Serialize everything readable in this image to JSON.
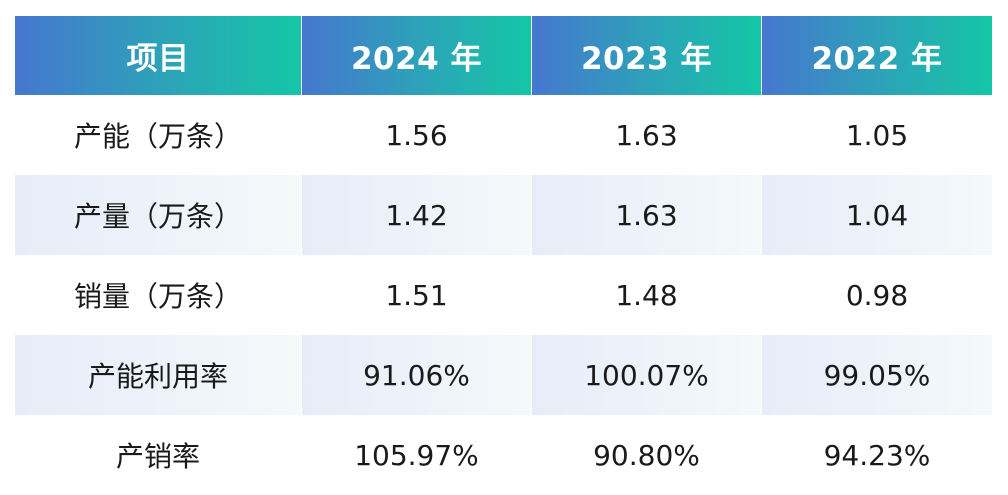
{
  "chart_data": {
    "type": "table",
    "columns": [
      "项目",
      "2024 年",
      "2023 年",
      "2022 年"
    ],
    "rows": [
      {
        "label": "产能（万条）",
        "values": [
          "1.56",
          "1.63",
          "1.05"
        ]
      },
      {
        "label": "产量（万条）",
        "values": [
          "1.42",
          "1.63",
          "1.04"
        ]
      },
      {
        "label": "销量（万条）",
        "values": [
          "1.51",
          "1.48",
          "0.98"
        ]
      },
      {
        "label": "产能利用率",
        "values": [
          "91.06%",
          "100.07%",
          "99.05%"
        ]
      },
      {
        "label": "产销率",
        "values": [
          "105.97%",
          "90.80%",
          "94.23%"
        ]
      }
    ],
    "colors": {
      "header_start": "#4677cf",
      "header_end": "#14c7a6",
      "stripe": "#eef4fa"
    }
  }
}
